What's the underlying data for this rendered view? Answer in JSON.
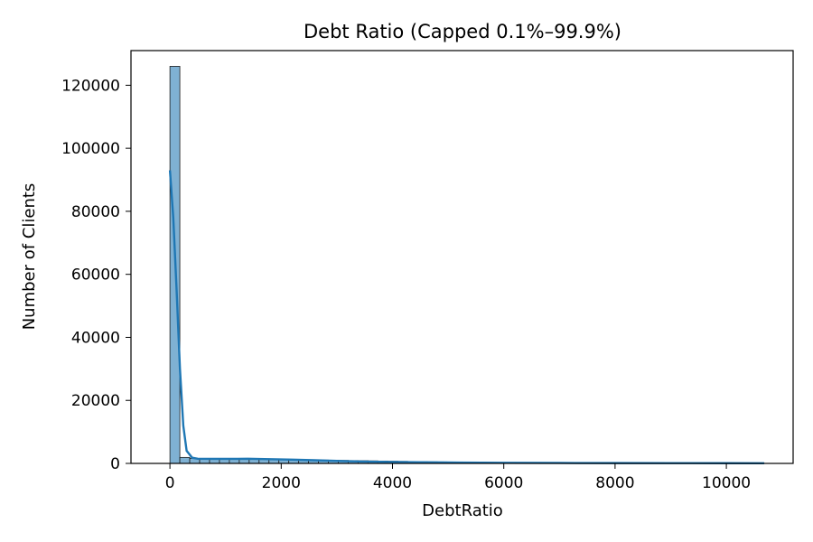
{
  "chart_data": {
    "type": "bar",
    "subtype": "histogram_with_kde",
    "title": "Debt Ratio (Capped 0.1%–99.9%)",
    "xlabel": "DebtRatio",
    "ylabel": "Number of Clients",
    "xlim": [
      -700,
      11200
    ],
    "ylim": [
      0,
      131000
    ],
    "xticks": [
      0,
      2000,
      4000,
      6000,
      8000,
      10000
    ],
    "yticks": [
      0,
      20000,
      40000,
      60000,
      80000,
      100000,
      120000
    ],
    "grid": false,
    "legend": "none",
    "bin_width": 178,
    "bin_start": 0,
    "values": [
      126000,
      1900,
      1600,
      1550,
      1500,
      1450,
      1400,
      1400,
      1380,
      1350,
      1300,
      1250,
      1200,
      1150,
      1100,
      1050,
      1000,
      950,
      900,
      850,
      800,
      750,
      700,
      650,
      600,
      550,
      500,
      470,
      440,
      410,
      380,
      350,
      330,
      310,
      290,
      270,
      250,
      230,
      210,
      200,
      190,
      180,
      170,
      160,
      150,
      140,
      130,
      120,
      115,
      110,
      105,
      100,
      95,
      90,
      85,
      80,
      75,
      70,
      65,
      60
    ],
    "kde_x": [
      0,
      60,
      120,
      180,
      240,
      300,
      400,
      500,
      800,
      1200,
      1400,
      1800,
      2200,
      2600,
      3000,
      3500,
      4000,
      5000,
      6000,
      7000,
      8000,
      9000,
      10000,
      10680
    ],
    "kde_y": [
      93000,
      78000,
      55000,
      30000,
      12000,
      4000,
      1800,
      1500,
      1450,
      1450,
      1500,
      1350,
      1200,
      1000,
      800,
      600,
      450,
      300,
      200,
      150,
      110,
      90,
      70,
      60
    ],
    "colors": {
      "bar_fill": "#7fb1d3",
      "bar_edge": "#1f1f1f",
      "kde_line": "#1f77b4",
      "axes": "#000000"
    }
  }
}
